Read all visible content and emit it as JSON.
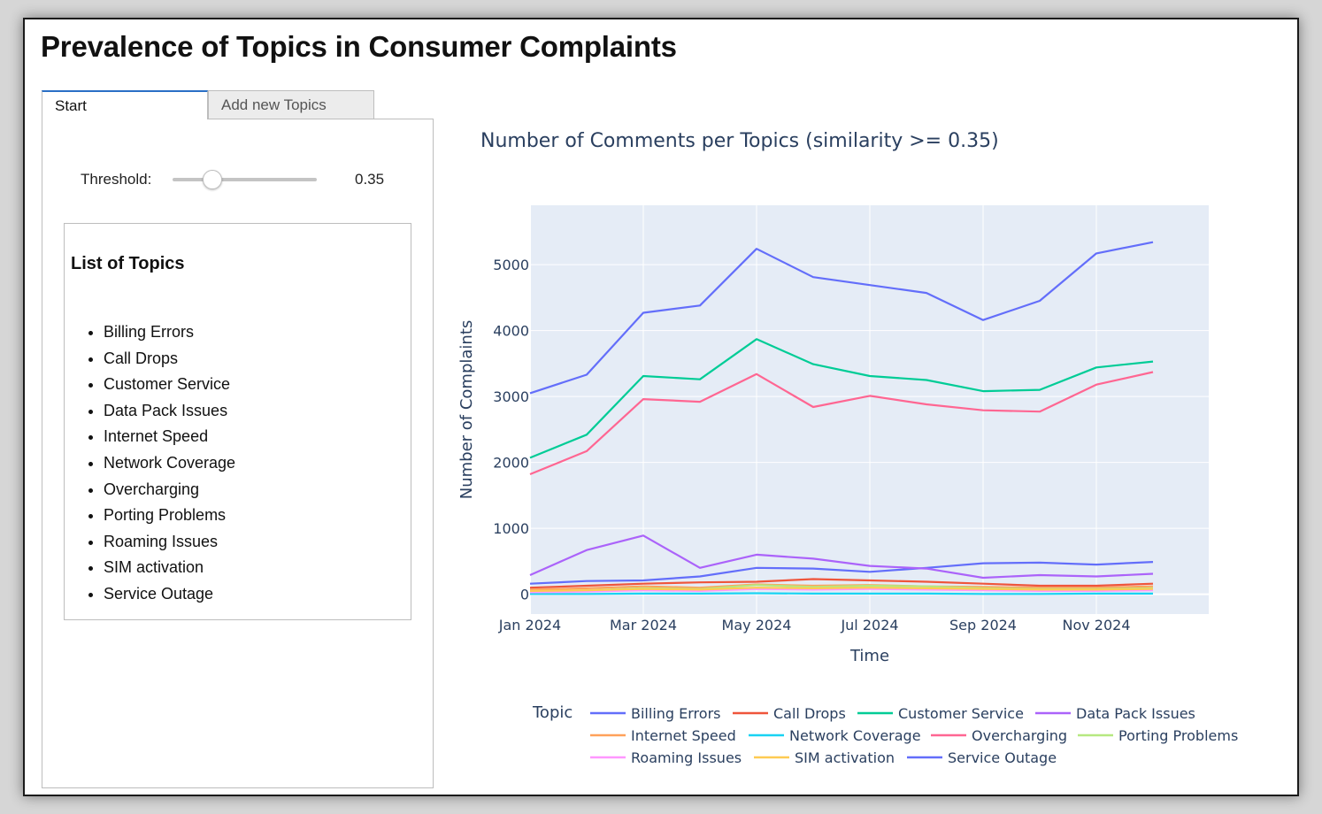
{
  "app": {
    "title": "Prevalence of Topics in Consumer Complaints",
    "tabs": [
      {
        "label": "Start",
        "active": true
      },
      {
        "label": "Add new Topics",
        "active": false
      }
    ]
  },
  "controls": {
    "threshold_label": "Threshold:",
    "threshold_value": "0.35",
    "threshold_fraction": 0.35
  },
  "topics_panel": {
    "title": "List of Topics",
    "items": [
      "Billing Errors",
      "Call Drops",
      "Customer Service",
      "Data Pack Issues",
      "Internet Speed",
      "Network Coverage",
      "Overcharging",
      "Porting Problems",
      "Roaming Issues",
      "SIM activation",
      "Service Outage"
    ]
  },
  "chart_data": {
    "type": "line",
    "title": "Number of Comments per Topics (similarity >= 0.35)",
    "xlabel": "Time",
    "ylabel": "Number of Complaints",
    "legend_title": "Topic",
    "x": [
      "2024-01",
      "2024-02",
      "2024-03",
      "2024-04",
      "2024-05",
      "2024-06",
      "2024-07",
      "2024-08",
      "2024-09",
      "2024-10",
      "2024-11",
      "2024-12"
    ],
    "x_tick_labels": [
      "Jan 2024",
      "Mar 2024",
      "May 2024",
      "Jul 2024",
      "Sep 2024",
      "Nov 2024"
    ],
    "y_ticks": [
      0,
      1000,
      2000,
      3000,
      4000,
      5000
    ],
    "ylim": [
      -300,
      5900
    ],
    "series": [
      {
        "name": "Billing Errors",
        "color": "#636efa",
        "values": [
          3050,
          3330,
          4270,
          4380,
          5240,
          4810,
          4690,
          4570,
          4160,
          4450,
          5170,
          5340
        ]
      },
      {
        "name": "Call Drops",
        "color": "#EF553B",
        "values": [
          100,
          130,
          160,
          180,
          190,
          230,
          210,
          190,
          160,
          130,
          130,
          160
        ]
      },
      {
        "name": "Customer Service",
        "color": "#00cc96",
        "values": [
          2070,
          2420,
          3310,
          3260,
          3870,
          3490,
          3310,
          3250,
          3080,
          3100,
          3440,
          3530
        ]
      },
      {
        "name": "Data Pack Issues",
        "color": "#ab63fa",
        "values": [
          290,
          670,
          890,
          400,
          600,
          540,
          430,
          390,
          250,
          290,
          270,
          310
        ]
      },
      {
        "name": "Internet Speed",
        "color": "#FFA15A",
        "values": [
          70,
          90,
          120,
          100,
          150,
          130,
          140,
          120,
          110,
          100,
          100,
          120
        ]
      },
      {
        "name": "Network Coverage",
        "color": "#19d3f3",
        "values": [
          5,
          5,
          10,
          10,
          15,
          10,
          10,
          10,
          5,
          5,
          10,
          10
        ]
      },
      {
        "name": "Overcharging",
        "color": "#FF6692",
        "values": [
          1820,
          2170,
          2960,
          2920,
          3340,
          2840,
          3010,
          2880,
          2790,
          2770,
          3180,
          3370
        ]
      },
      {
        "name": "Porting Problems",
        "color": "#B6E880",
        "values": [
          40,
          60,
          90,
          80,
          140,
          110,
          130,
          120,
          90,
          80,
          80,
          90
        ]
      },
      {
        "name": "Roaming Issues",
        "color": "#FF97FF",
        "values": [
          30,
          40,
          60,
          50,
          80,
          70,
          80,
          70,
          60,
          50,
          50,
          60
        ]
      },
      {
        "name": "SIM activation",
        "color": "#FECB52",
        "values": [
          50,
          60,
          80,
          70,
          100,
          90,
          100,
          90,
          80,
          70,
          70,
          80
        ]
      },
      {
        "name": "Service Outage",
        "color": "#636efa",
        "values": [
          160,
          200,
          210,
          270,
          400,
          390,
          340,
          400,
          470,
          480,
          450,
          490
        ]
      }
    ]
  }
}
